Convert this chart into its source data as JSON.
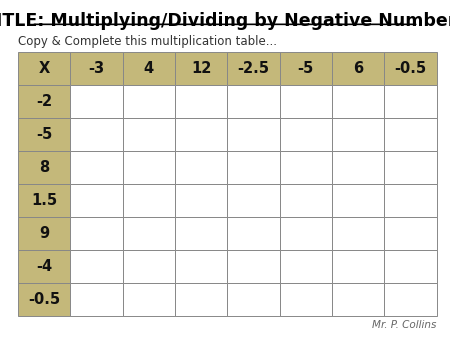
{
  "title": "TITLE: Multiplying/Dividing by Negative Numbers",
  "subtitle": "Copy & Complete this multiplication table...",
  "author": "Mr. P. Collins",
  "col_headers": [
    "X",
    "-3",
    "4",
    "12",
    "-2.5",
    "-5",
    "6",
    "-0.5"
  ],
  "row_headers": [
    "-2",
    "-5",
    "8",
    "1.5",
    "9",
    "-4",
    "-0.5"
  ],
  "header_bg_color": "#C4B87A",
  "cell_bg_color": "#FFFFFF",
  "grid_color": "#888888",
  "title_color": "#000000",
  "subtitle_color": "#333333",
  "author_color": "#666666",
  "bg_color": "#FFFFFF",
  "title_fontsize": 12.5,
  "subtitle_fontsize": 8.5,
  "cell_fontsize": 10.5,
  "author_fontsize": 7.5
}
